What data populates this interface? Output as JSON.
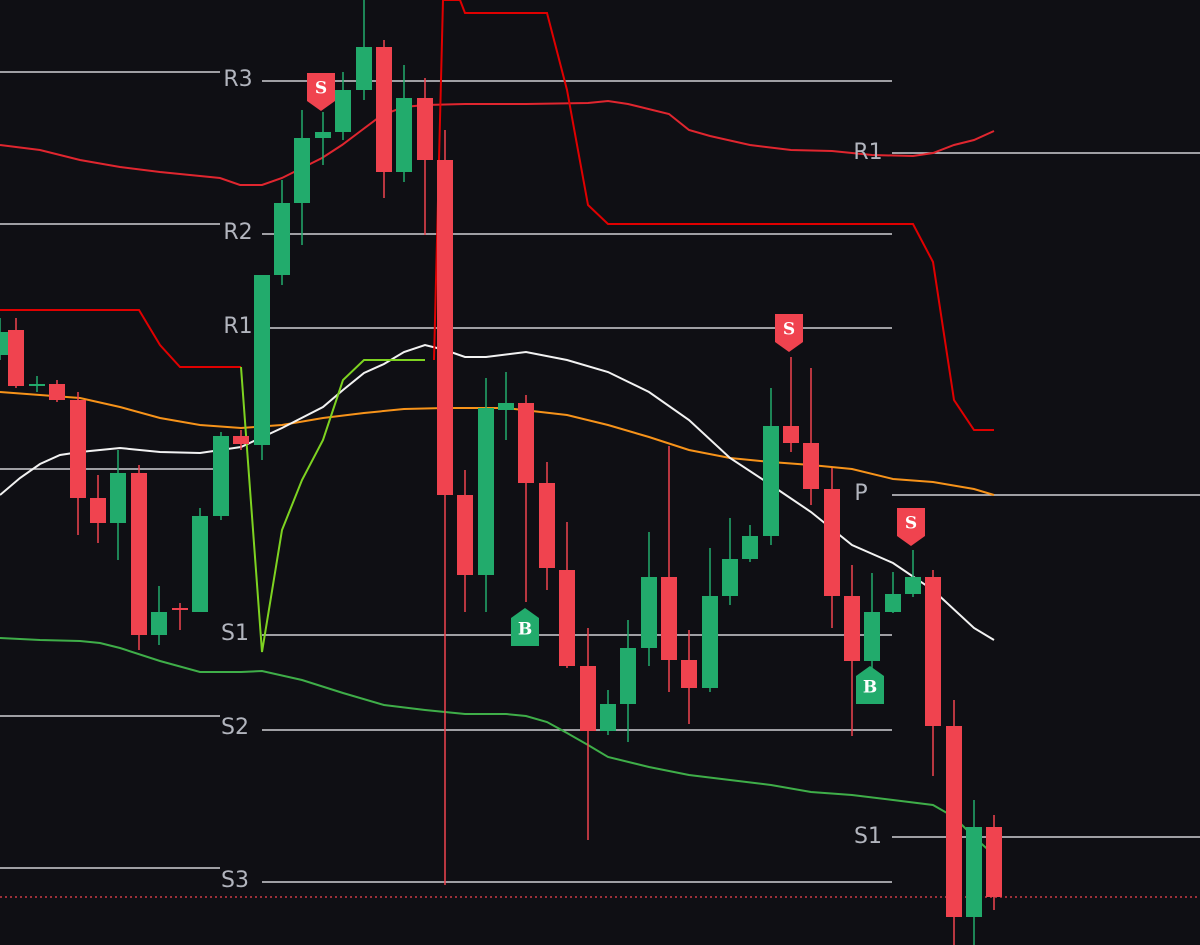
{
  "pivots_left": [
    "R3",
    "R2",
    "R1",
    "S1",
    "S2",
    "S3"
  ],
  "pivots_right": [
    "R1",
    "P",
    "S1"
  ],
  "signals": [
    "S",
    "S",
    "S",
    "B",
    "B"
  ]
}
